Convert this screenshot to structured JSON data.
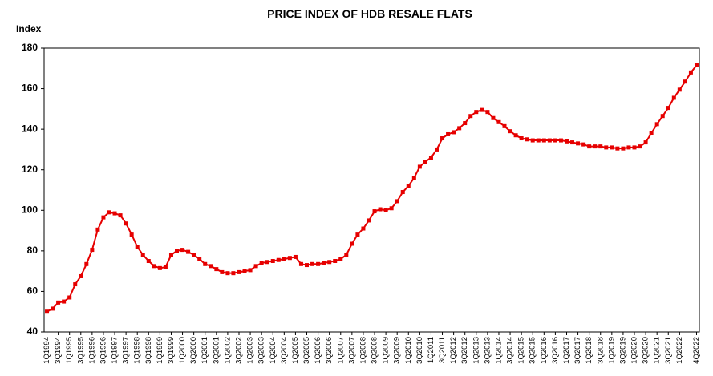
{
  "chart_data": {
    "type": "line",
    "title": "PRICE INDEX OF HDB RESALE FLATS",
    "y_label": "Index",
    "categories": [
      "1Q1994",
      null,
      "3Q1994",
      null,
      "1Q1995",
      null,
      "3Q1995",
      null,
      "1Q1996",
      null,
      "3Q1996",
      null,
      "1Q1997",
      null,
      "3Q1997",
      null,
      "1Q1998",
      null,
      "3Q1998",
      null,
      "1Q1999",
      null,
      "3Q1999",
      null,
      "1Q2000",
      null,
      "3Q2000",
      null,
      "1Q2001",
      null,
      "3Q2001",
      null,
      "1Q2002",
      null,
      "3Q2002",
      null,
      "1Q2003",
      null,
      "3Q2003",
      null,
      "1Q2004",
      null,
      "3Q2004",
      null,
      "1Q2005",
      null,
      "3Q2005",
      null,
      "1Q2006",
      null,
      "3Q2006",
      null,
      "1Q2007",
      null,
      "3Q2007",
      null,
      "1Q2008",
      null,
      "3Q2008",
      null,
      "1Q2009",
      null,
      "3Q2009",
      null,
      "1Q2010",
      null,
      "3Q2010",
      null,
      "1Q2011",
      null,
      "3Q2011",
      null,
      "1Q2012",
      null,
      "3Q2012",
      null,
      "1Q2013",
      null,
      "3Q2013",
      null,
      "1Q2014",
      null,
      "3Q2014",
      null,
      "1Q2015",
      null,
      "3Q2015",
      null,
      "1Q2016",
      null,
      "3Q2016",
      null,
      "1Q2017",
      null,
      "3Q2017",
      null,
      "1Q2018",
      null,
      "3Q2018",
      null,
      "1Q2019",
      null,
      "3Q2019",
      null,
      "1Q2020",
      null,
      "3Q2020",
      null,
      "1Q2021",
      null,
      "3Q2021",
      null,
      "1Q2022",
      null,
      null,
      "4Q2022"
    ],
    "values": [
      50,
      51.5,
      54.5,
      55,
      57,
      63.5,
      67.5,
      73.5,
      80.5,
      90.5,
      96.5,
      99,
      98.5,
      97.5,
      93.5,
      88,
      82,
      78,
      75,
      72.5,
      71.5,
      72,
      78,
      80,
      80.5,
      79.5,
      78,
      76,
      73.5,
      72.5,
      71,
      69.5,
      69,
      69,
      69.5,
      70,
      70.5,
      72.5,
      74,
      74.5,
      75,
      75.5,
      76,
      76.5,
      77,
      73.5,
      73,
      73.5,
      73.5,
      74,
      74.5,
      75,
      76,
      78,
      83.5,
      88,
      91,
      95,
      99.5,
      100.5,
      100,
      101,
      104.5,
      109,
      112,
      116,
      121.5,
      124,
      126,
      130,
      135.5,
      137.5,
      138.5,
      140.5,
      143,
      146.5,
      148.5,
      149.5,
      148.5,
      145.5,
      143.5,
      141.5,
      139,
      137,
      135.5,
      135,
      134.5,
      134.5,
      134.5,
      134.5,
      134.5,
      134.5,
      134,
      133.5,
      133,
      132.5,
      131.5,
      131.5,
      131.5,
      131,
      131,
      130.5,
      130.5,
      131,
      131,
      131.5,
      133.5,
      138,
      142.5,
      146.5,
      150.5,
      155.5,
      159.5,
      163.5,
      168,
      171.5
    ],
    "color": "#e60000",
    "ylim": [
      40,
      180
    ],
    "yticks": [
      40,
      60,
      80,
      100,
      120,
      140,
      160,
      180
    ]
  }
}
